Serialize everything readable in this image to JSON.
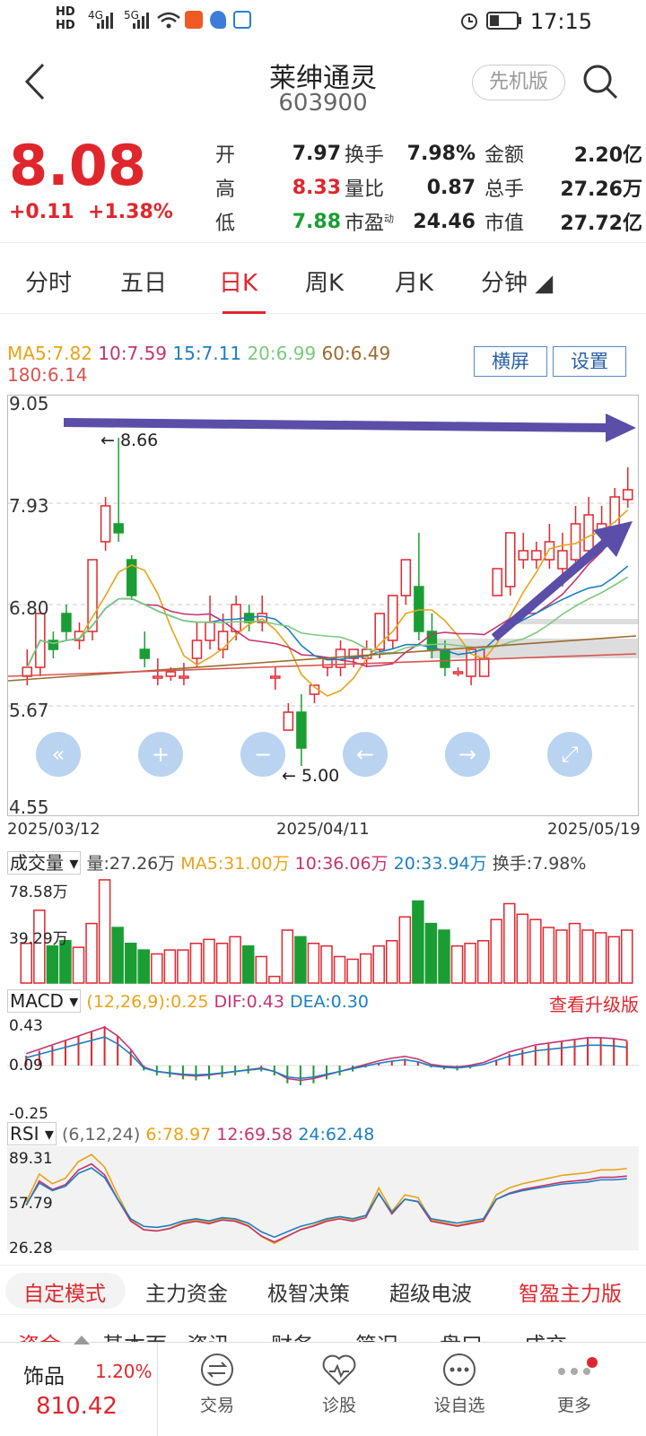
{
  "status": {
    "time": "17:15",
    "net1": "HD",
    "net2": "HD",
    "sig1": "4G",
    "sig2": "5G"
  },
  "header": {
    "title": "莱绅通灵",
    "code": "603900",
    "version_btn": "先机版"
  },
  "quote": {
    "price": "8.08",
    "change": "+0.11",
    "pct": "+1.38%",
    "stats": [
      [
        {
          "l": "开",
          "v": "7.97",
          "c": "#222"
        },
        {
          "l": "换手",
          "v": "7.98%",
          "c": "#222"
        },
        {
          "l": "金额",
          "v": "2.20亿",
          "c": "#222"
        }
      ],
      [
        {
          "l": "高",
          "v": "8.33",
          "c": "#e0262d"
        },
        {
          "l": "量比",
          "v": "0.87",
          "c": "#222"
        },
        {
          "l": "总手",
          "v": "27.26万",
          "c": "#222"
        }
      ],
      [
        {
          "l": "低",
          "v": "7.88",
          "c": "#1a9e34"
        },
        {
          "l": "市盈",
          "l2": "动",
          "v": "24.46",
          "c": "#222"
        },
        {
          "l": "市值",
          "v": "27.72亿",
          "c": "#222"
        }
      ]
    ]
  },
  "tabs": [
    "分时",
    "五日",
    "日K",
    "周K",
    "月K",
    "分钟"
  ],
  "ma": {
    "ma5": "MA5:7.82",
    "ma10": "10:7.59",
    "ma15": "15:7.11",
    "ma20": "20:6.99",
    "ma60": "60:6.49",
    "ma180": "180:6.14",
    "c5": "#e8a317",
    "c10": "#c4346f",
    "c15": "#1c7fbf",
    "c20": "#7cc97c",
    "c60": "#9b6a2f",
    "c180": "#d9534f"
  },
  "buttons": {
    "landscape": "横屏",
    "settings": "设置"
  },
  "kline": {
    "y_labels": [
      "9.05",
      "7.93",
      "6.80",
      "5.67",
      "4.55"
    ],
    "dates": [
      "2025/03/12",
      "2025/04/11",
      "2025/05/19"
    ],
    "high_mark": "8.66",
    "low_mark": "5.00"
  },
  "volume": {
    "label": "成交量",
    "vol": "量:27.26万",
    "ma5": "MA5:31.00万",
    "ma10": "10:36.06万",
    "ma20": "20:33.94万",
    "turn": "换手:7.98%",
    "y1": "78.58万",
    "y2": "39.29万"
  },
  "macd": {
    "label": "MACD",
    "param": "(12,26,9):0.25",
    "dif": "DIF:0.43",
    "dea": "DEA:0.30",
    "upgrade": "查看升级版",
    "y1": "0.43",
    "y2": "0.09",
    "y3": "-0.25"
  },
  "rsi": {
    "label": "RSI",
    "param": "(6,12,24)",
    "r6": "6:78.97",
    "r12": "12:69.58",
    "r24": "24:62.48",
    "y1": "89.31",
    "y2": "57.79",
    "y3": "26.28"
  },
  "bottom_tabs": [
    "自定模式",
    "主力资金",
    "极智决策",
    "超级电波",
    "智盈主力版"
  ],
  "sub_tabs": [
    "资金",
    "基本面",
    "资讯",
    "财务",
    "简况",
    "盘口",
    "成交"
  ],
  "nav": {
    "index_name": "饰品",
    "index_pct": "1.20%",
    "index_val": "810.42",
    "items": [
      "交易",
      "诊股",
      "设自选",
      "更多"
    ]
  }
}
